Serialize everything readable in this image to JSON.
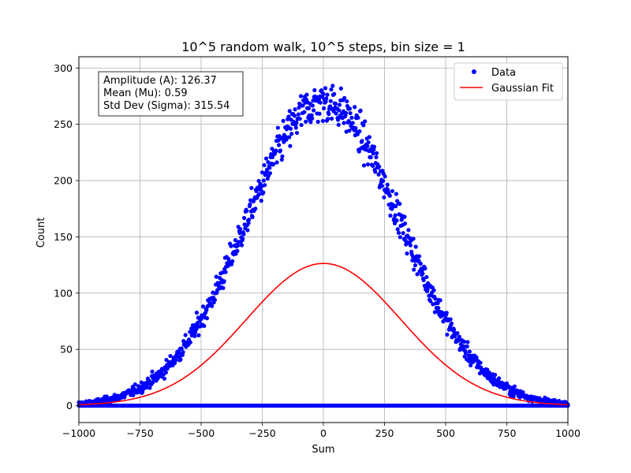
{
  "chart_data": {
    "type": "scatter",
    "title": "10^5 random walk, 10^5 steps, bin size = 1",
    "xlabel": "Sum",
    "ylabel": "Count",
    "xlim": [
      -1000,
      1000
    ],
    "ylim": [
      -15,
      310
    ],
    "xticks": [
      -1000,
      -750,
      -500,
      -250,
      0,
      250,
      500,
      750,
      1000
    ],
    "xtick_labels": [
      "−1000",
      "−750",
      "−500",
      "−250",
      "0",
      "250",
      "500",
      "750",
      "1000"
    ],
    "yticks": [
      0,
      50,
      100,
      150,
      200,
      250,
      300
    ],
    "ytick_labels": [
      "0",
      "50",
      "100",
      "150",
      "200",
      "250",
      "300"
    ],
    "grid": true,
    "legend": {
      "placement": "top-right",
      "entries": [
        "Data",
        "Gaussian Fit"
      ]
    },
    "stats_box": {
      "amplitude": "Amplitude (A): 126.37",
      "mean": "Mean (Mu): 0.59",
      "std": "Std Dev (Sigma): 315.54"
    },
    "fit": {
      "name": "Gaussian Fit",
      "amplitude": 126.37,
      "mean": 0.59,
      "sigma": 315.54,
      "color": "#ff0000"
    },
    "data_series": {
      "name": "Data",
      "color": "#0000ff",
      "peak_count": 270,
      "spread_sigma": 315,
      "zero_row_y": 0
    }
  }
}
